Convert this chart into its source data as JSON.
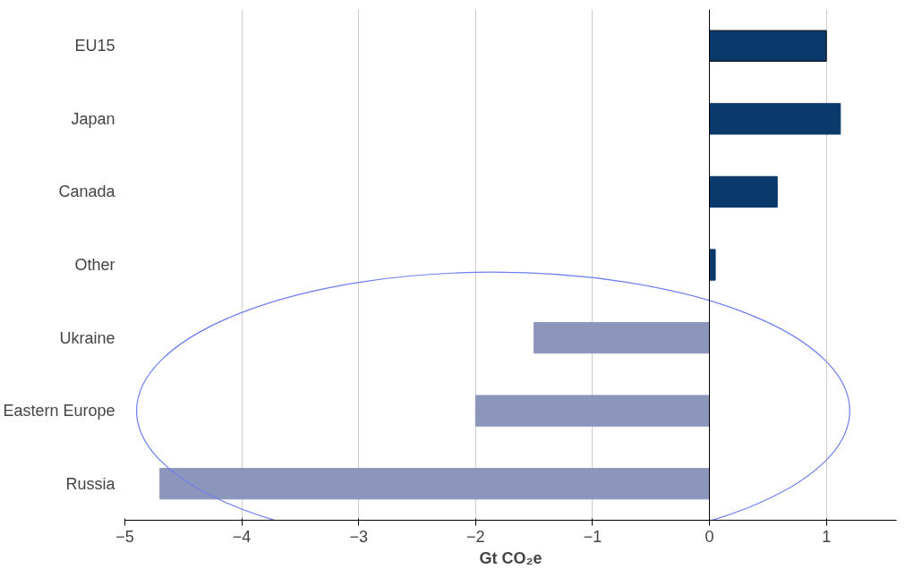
{
  "chart_data": {
    "type": "bar",
    "orientation": "horizontal",
    "categories": [
      "EU15",
      "Japan",
      "Canada",
      "Other",
      "Ukraine",
      "Eastern Europe",
      "Russia"
    ],
    "values": [
      1.0,
      1.12,
      0.58,
      0.05,
      -1.5,
      -2.0,
      -4.7
    ],
    "colors": [
      "#0a3a6b",
      "#0a3a6b",
      "#0a3a6b",
      "#0a3a6b",
      "#8c96bb",
      "#8c96bb",
      "#8c96bb"
    ],
    "xlim": [
      -5,
      1.6
    ],
    "xticks": [
      -5,
      -4,
      -3,
      -2,
      -1,
      0,
      1
    ],
    "xlabel": "Gt CO₂e",
    "grid": "x"
  }
}
